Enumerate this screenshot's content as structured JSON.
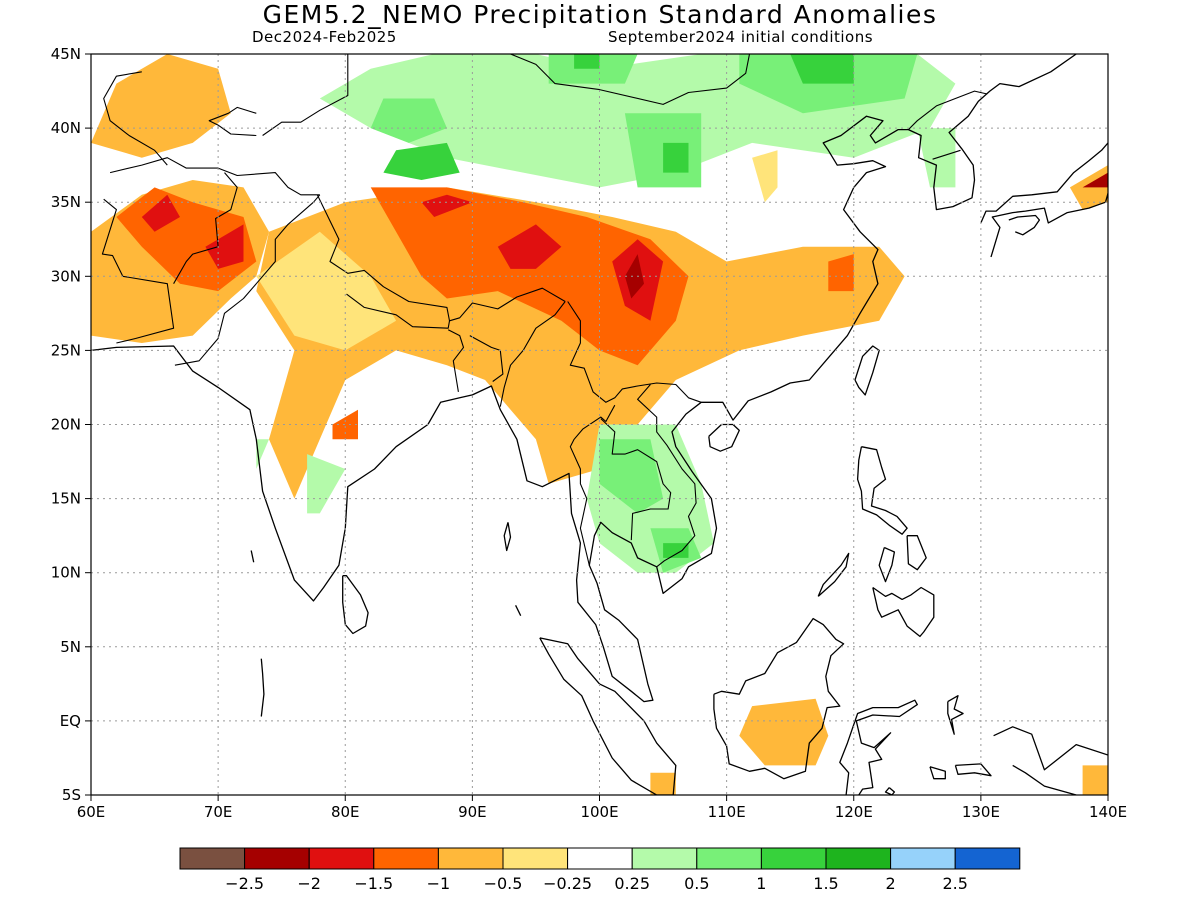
{
  "header": {
    "title": "GEM5.2_NEMO Precipitation Standard Anomalies",
    "period": "Dec2024-Feb2025",
    "init": "September2024 initial conditions"
  },
  "map": {
    "lon_min": 60,
    "lon_max": 140,
    "lat_min": -5,
    "lat_max": 45,
    "lat_ticks": [
      {
        "lat": 45,
        "label": "45N"
      },
      {
        "lat": 40,
        "label": "40N"
      },
      {
        "lat": 35,
        "label": "35N"
      },
      {
        "lat": 30,
        "label": "30N"
      },
      {
        "lat": 25,
        "label": "25N"
      },
      {
        "lat": 20,
        "label": "20N"
      },
      {
        "lat": 15,
        "label": "15N"
      },
      {
        "lat": 10,
        "label": "10N"
      },
      {
        "lat": 5,
        "label": "5N"
      },
      {
        "lat": 0,
        "label": "EQ"
      },
      {
        "lat": -5,
        "label": "5S"
      }
    ],
    "lon_ticks": [
      {
        "lon": 60,
        "label": "60E"
      },
      {
        "lon": 70,
        "label": "70E"
      },
      {
        "lon": 80,
        "label": "80E"
      },
      {
        "lon": 90,
        "label": "90E"
      },
      {
        "lon": 100,
        "label": "100E"
      },
      {
        "lon": 110,
        "label": "110E"
      },
      {
        "lon": 120,
        "label": "120E"
      },
      {
        "lon": 130,
        "label": "130E"
      },
      {
        "lon": 140,
        "label": "140E"
      }
    ]
  },
  "colors": {
    "-2.5": "#7a5040",
    "-2": "#a50000",
    "-1.5": "#e01010",
    "-1": "#ff6400",
    "-0.5": "#ffb83a",
    "-0.25": "#ffe47a",
    "0": "#ffffff",
    "0.25": "#b4faaa",
    "0.5": "#78f078",
    "1": "#37d23c",
    "1.5": "#1eb41e",
    "2": "#96d2fa",
    "2.5": "#1464d2"
  },
  "anomaly_regions": [
    {
      "level": "-0.5",
      "poly": [
        [
          60,
          33
        ],
        [
          64,
          35.5
        ],
        [
          68,
          36.5
        ],
        [
          72,
          36
        ],
        [
          74,
          33
        ],
        [
          73,
          30
        ],
        [
          71,
          28.5
        ],
        [
          68,
          26
        ],
        [
          64,
          25.5
        ],
        [
          60,
          26
        ]
      ]
    },
    {
      "level": "-0.5",
      "poly": [
        [
          60,
          39
        ],
        [
          62,
          43
        ],
        [
          66,
          45
        ],
        [
          70,
          44
        ],
        [
          71,
          41
        ],
        [
          68,
          39
        ],
        [
          64,
          38
        ]
      ]
    },
    {
      "level": "-0.5",
      "poly": [
        [
          74,
          33
        ],
        [
          80,
          35
        ],
        [
          88,
          36
        ],
        [
          95,
          35
        ],
        [
          101,
          34
        ],
        [
          106,
          33
        ],
        [
          110,
          31
        ],
        [
          116,
          32
        ],
        [
          122,
          32
        ],
        [
          124,
          30
        ],
        [
          122,
          27
        ],
        [
          116,
          26
        ],
        [
          111,
          25
        ],
        [
          106,
          23
        ],
        [
          103,
          20
        ],
        [
          100,
          17
        ],
        [
          96,
          16
        ],
        [
          95,
          19
        ],
        [
          91,
          23
        ],
        [
          88,
          24
        ],
        [
          84,
          25
        ],
        [
          80,
          23
        ],
        [
          78,
          19
        ],
        [
          76,
          15
        ],
        [
          74,
          19
        ],
        [
          76,
          25
        ],
        [
          73,
          29
        ]
      ]
    },
    {
      "level": "-0.25",
      "poly": [
        [
          73,
          30
        ],
        [
          78,
          33
        ],
        [
          82,
          30
        ],
        [
          84,
          27
        ],
        [
          80,
          25
        ],
        [
          76,
          26
        ]
      ]
    },
    {
      "level": "-0.25",
      "poly": [
        [
          112,
          38
        ],
        [
          114,
          38.5
        ],
        [
          114,
          36
        ],
        [
          113,
          35
        ]
      ]
    },
    {
      "level": "-0.5",
      "poly": [
        [
          112,
          1
        ],
        [
          117,
          1.5
        ],
        [
          118,
          -1
        ],
        [
          117,
          -3
        ],
        [
          113,
          -3
        ],
        [
          111,
          -1
        ]
      ]
    },
    {
      "level": "-0.5",
      "poly": [
        [
          137,
          36
        ],
        [
          140,
          37.5
        ],
        [
          140,
          35
        ],
        [
          138,
          34.5
        ]
      ]
    },
    {
      "level": "-0.5",
      "poly": [
        [
          138,
          -3
        ],
        [
          140,
          -3
        ],
        [
          140,
          -5
        ],
        [
          138,
          -5
        ]
      ]
    },
    {
      "level": "-0.5",
      "poly": [
        [
          104,
          -3.5
        ],
        [
          106,
          -3.5
        ],
        [
          106,
          -5
        ],
        [
          104,
          -5
        ]
      ]
    },
    {
      "level": "-1",
      "poly": [
        [
          62,
          34
        ],
        [
          65,
          36
        ],
        [
          68,
          35
        ],
        [
          72,
          34
        ],
        [
          73,
          31
        ],
        [
          70,
          29
        ],
        [
          67,
          29.5
        ],
        [
          64,
          32
        ]
      ]
    },
    {
      "level": "-1",
      "poly": [
        [
          82,
          36
        ],
        [
          88,
          36
        ],
        [
          94,
          35
        ],
        [
          99,
          34
        ],
        [
          104,
          32.5
        ],
        [
          107,
          30
        ],
        [
          106,
          27
        ],
        [
          103,
          24
        ],
        [
          100,
          25
        ],
        [
          97,
          27
        ],
        [
          92,
          29
        ],
        [
          88,
          28.5
        ],
        [
          86,
          30
        ],
        [
          84,
          33
        ]
      ]
    },
    {
      "level": "-1",
      "poly": [
        [
          118,
          31
        ],
        [
          120,
          31.5
        ],
        [
          120,
          29
        ],
        [
          118,
          29
        ]
      ]
    },
    {
      "level": "-1",
      "poly": [
        [
          79,
          20
        ],
        [
          81,
          21
        ],
        [
          81,
          19
        ],
        [
          79,
          19
        ]
      ]
    },
    {
      "level": "-1.5",
      "poly": [
        [
          64,
          34
        ],
        [
          66,
          35.5
        ],
        [
          67,
          34
        ],
        [
          65,
          33
        ]
      ]
    },
    {
      "level": "-1.5",
      "poly": [
        [
          69,
          32
        ],
        [
          72,
          33.5
        ],
        [
          72,
          31
        ],
        [
          70,
          30.5
        ]
      ]
    },
    {
      "level": "-1.5",
      "poly": [
        [
          86,
          35
        ],
        [
          88,
          35.5
        ],
        [
          90,
          35
        ],
        [
          87,
          34
        ]
      ]
    },
    {
      "level": "-1.5",
      "poly": [
        [
          92,
          32
        ],
        [
          95,
          33.5
        ],
        [
          97,
          32
        ],
        [
          95,
          30.5
        ],
        [
          93,
          30.5
        ]
      ]
    },
    {
      "level": "-1.5",
      "poly": [
        [
          101,
          31
        ],
        [
          103,
          32.5
        ],
        [
          105,
          31
        ],
        [
          104,
          27
        ],
        [
          102,
          28
        ]
      ]
    },
    {
      "level": "-2",
      "poly": [
        [
          102,
          30
        ],
        [
          103,
          31.5
        ],
        [
          103.5,
          29.5
        ],
        [
          102.5,
          28.5
        ]
      ]
    },
    {
      "level": "-2",
      "poly": [
        [
          138,
          36
        ],
        [
          140,
          37
        ],
        [
          140,
          36
        ]
      ]
    },
    {
      "level": "0.25",
      "poly": [
        [
          82,
          44
        ],
        [
          87,
          45
        ],
        [
          95,
          45
        ],
        [
          100,
          44
        ],
        [
          108,
          45
        ],
        [
          125,
          45
        ],
        [
          128,
          43
        ],
        [
          126,
          40
        ],
        [
          120,
          38
        ],
        [
          112,
          39
        ],
        [
          106,
          37
        ],
        [
          100,
          36
        ],
        [
          94,
          37
        ],
        [
          88,
          38
        ],
        [
          82,
          40
        ],
        [
          78,
          42
        ]
      ]
    },
    {
      "level": "0.25",
      "poly": [
        [
          125,
          40
        ],
        [
          128,
          40
        ],
        [
          128,
          36
        ],
        [
          126,
          36
        ]
      ]
    },
    {
      "level": "0.25",
      "poly": [
        [
          100,
          20
        ],
        [
          106,
          20
        ],
        [
          108,
          16
        ],
        [
          109,
          12
        ],
        [
          106,
          10
        ],
        [
          103,
          10
        ],
        [
          100,
          12
        ],
        [
          99,
          15
        ]
      ]
    },
    {
      "level": "0.25",
      "poly": [
        [
          73,
          19
        ],
        [
          74,
          19
        ],
        [
          73,
          17
        ]
      ]
    },
    {
      "level": "0.25",
      "poly": [
        [
          77,
          18
        ],
        [
          80,
          17
        ],
        [
          78,
          14
        ],
        [
          77,
          14
        ]
      ]
    },
    {
      "level": "0.5",
      "poly": [
        [
          83,
          42
        ],
        [
          87,
          42
        ],
        [
          88,
          40
        ],
        [
          85,
          39
        ],
        [
          82,
          40
        ]
      ]
    },
    {
      "level": "0.5",
      "poly": [
        [
          96,
          45
        ],
        [
          103,
          45
        ],
        [
          102,
          43
        ],
        [
          96,
          43
        ]
      ]
    },
    {
      "level": "0.5",
      "poly": [
        [
          111,
          45
        ],
        [
          125,
          45
        ],
        [
          124,
          42
        ],
        [
          116,
          41
        ],
        [
          111,
          43
        ]
      ]
    },
    {
      "level": "0.5",
      "poly": [
        [
          102,
          41
        ],
        [
          108,
          41
        ],
        [
          108,
          36
        ],
        [
          103,
          36
        ]
      ]
    },
    {
      "level": "0.5",
      "poly": [
        [
          100,
          19
        ],
        [
          104,
          19
        ],
        [
          105,
          15
        ],
        [
          103,
          14
        ],
        [
          100,
          16
        ]
      ]
    },
    {
      "level": "0.5",
      "poly": [
        [
          104,
          13
        ],
        [
          107,
          13
        ],
        [
          108,
          11
        ],
        [
          105,
          10
        ]
      ]
    },
    {
      "level": "1",
      "poly": [
        [
          84,
          38.5
        ],
        [
          88,
          39
        ],
        [
          89,
          37
        ],
        [
          86,
          36.5
        ],
        [
          83,
          37
        ]
      ]
    },
    {
      "level": "1",
      "poly": [
        [
          98,
          45
        ],
        [
          100,
          45
        ],
        [
          100,
          44
        ],
        [
          98,
          44
        ]
      ]
    },
    {
      "level": "1",
      "poly": [
        [
          115,
          45
        ],
        [
          120,
          45
        ],
        [
          120,
          43
        ],
        [
          116,
          43
        ]
      ]
    },
    {
      "level": "1",
      "poly": [
        [
          105,
          39
        ],
        [
          107,
          39
        ],
        [
          107,
          37
        ],
        [
          105,
          37
        ]
      ]
    },
    {
      "level": "1",
      "poly": [
        [
          105,
          12
        ],
        [
          107,
          12
        ],
        [
          107,
          11
        ],
        [
          105,
          11
        ]
      ]
    }
  ],
  "legend": {
    "labels": [
      "-2.5",
      "-2",
      "-1.5",
      "-1",
      "-0.5",
      "-0.25",
      "0.25",
      "0.5",
      "1",
      "1.5",
      "2",
      "2.5"
    ]
  }
}
